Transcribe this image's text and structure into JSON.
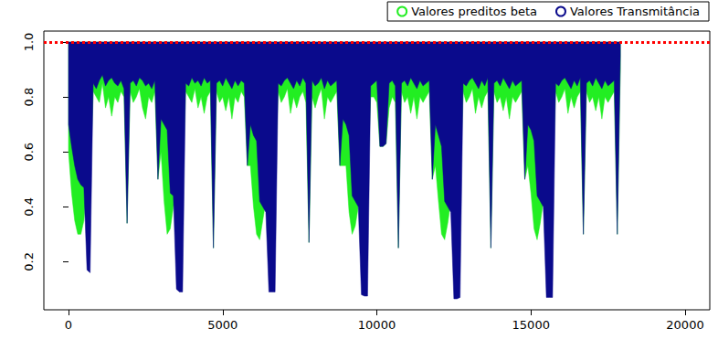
{
  "chart_data": {
    "type": "area",
    "x": [
      0,
      100,
      200,
      300,
      400,
      500,
      600,
      700,
      800,
      900,
      1000,
      1100,
      1200,
      1300,
      1400,
      1500,
      1600,
      1700,
      1800,
      1900,
      2000,
      2100,
      2200,
      2300,
      2400,
      2500,
      2600,
      2700,
      2800,
      2900,
      3000,
      3100,
      3200,
      3300,
      3400,
      3500,
      3600,
      3700,
      3800,
      3900,
      4000,
      4100,
      4200,
      4300,
      4400,
      4500,
      4600,
      4700,
      4800,
      4900,
      5000,
      5100,
      5200,
      5300,
      5400,
      5500,
      5600,
      5700,
      5800,
      5900,
      6000,
      6100,
      6200,
      6300,
      6400,
      6500,
      6600,
      6700,
      6800,
      6900,
      7000,
      7100,
      7200,
      7300,
      7400,
      7500,
      7600,
      7700,
      7800,
      7900,
      8000,
      8100,
      8200,
      8300,
      8400,
      8500,
      8600,
      8700,
      8800,
      8900,
      9000,
      9100,
      9200,
      9300,
      9400,
      9500,
      9600,
      9700,
      9800,
      9900,
      10000,
      10100,
      10200,
      10300,
      10400,
      10500,
      10600,
      10700,
      10800,
      10900,
      11000,
      11100,
      11200,
      11300,
      11400,
      11500,
      11600,
      11700,
      11800,
      11900,
      12000,
      12100,
      12200,
      12300,
      12400,
      12500,
      12600,
      12700,
      12800,
      12900,
      13000,
      13100,
      13200,
      13300,
      13400,
      13500,
      13600,
      13700,
      13800,
      13900,
      14000,
      14100,
      14200,
      14300,
      14400,
      14500,
      14600,
      14700,
      14800,
      14900,
      15000,
      15100,
      15200,
      15300,
      15400,
      15500,
      15600,
      15700,
      15800,
      15900,
      16000,
      16100,
      16200,
      16300,
      16400,
      16500,
      16600,
      16700,
      16800,
      16900,
      17000,
      17100,
      17200,
      17300,
      17400,
      17500,
      17600,
      17700,
      17800,
      17900
    ],
    "series": [
      {
        "name": "Valores preditos beta",
        "color": "#22ee22",
        "values": [
          0.6,
          0.45,
          0.35,
          0.3,
          0.3,
          0.35,
          0.5,
          0.5,
          0.82,
          0.8,
          0.78,
          0.85,
          0.76,
          0.8,
          0.73,
          0.8,
          0.78,
          0.82,
          0.8,
          0.34,
          0.82,
          0.78,
          0.8,
          0.83,
          0.76,
          0.72,
          0.8,
          0.78,
          0.82,
          0.5,
          0.6,
          0.42,
          0.3,
          0.32,
          0.4,
          0.45,
          0.45,
          0.5,
          0.82,
          0.8,
          0.78,
          0.83,
          0.76,
          0.8,
          0.74,
          0.8,
          0.82,
          0.25,
          0.82,
          0.78,
          0.8,
          0.75,
          0.8,
          0.72,
          0.8,
          0.78,
          0.82,
          0.8,
          0.55,
          0.55,
          0.4,
          0.3,
          0.28,
          0.35,
          0.42,
          0.45,
          0.45,
          0.5,
          0.82,
          0.78,
          0.8,
          0.83,
          0.74,
          0.8,
          0.76,
          0.8,
          0.82,
          0.78,
          0.27,
          0.8,
          0.76,
          0.8,
          0.83,
          0.72,
          0.8,
          0.78,
          0.8,
          0.82,
          0.55,
          0.55,
          0.55,
          0.38,
          0.3,
          0.33,
          0.4,
          0.45,
          0.45,
          0.5,
          0.8,
          0.8,
          0.78,
          0.62,
          0.62,
          0.63,
          0.76,
          0.8,
          0.78,
          0.25,
          0.82,
          0.78,
          0.8,
          0.74,
          0.8,
          0.72,
          0.8,
          0.78,
          0.8,
          0.82,
          0.5,
          0.55,
          0.42,
          0.3,
          0.28,
          0.34,
          0.42,
          0.45,
          0.45,
          0.5,
          0.82,
          0.78,
          0.8,
          0.83,
          0.74,
          0.8,
          0.76,
          0.8,
          0.82,
          0.25,
          0.82,
          0.78,
          0.8,
          0.75,
          0.8,
          0.72,
          0.8,
          0.78,
          0.8,
          0.82,
          0.5,
          0.55,
          0.45,
          0.32,
          0.28,
          0.34,
          0.42,
          0.45,
          0.45,
          0.5,
          0.82,
          0.78,
          0.8,
          0.83,
          0.74,
          0.8,
          0.76,
          0.8,
          0.82,
          0.3,
          0.82,
          0.78,
          0.8,
          0.75,
          0.8,
          0.72,
          0.8,
          0.78,
          0.8,
          0.82,
          0.3,
          0.9
        ]
      },
      {
        "name": "Valores Transmitância",
        "color": "#0a0a8c",
        "values": [
          0.7,
          0.62,
          0.55,
          0.5,
          0.48,
          0.47,
          0.17,
          0.16,
          0.85,
          0.83,
          0.86,
          0.88,
          0.84,
          0.86,
          0.87,
          0.85,
          0.84,
          0.86,
          0.83,
          0.34,
          0.85,
          0.86,
          0.84,
          0.87,
          0.86,
          0.84,
          0.85,
          0.83,
          0.86,
          0.5,
          0.72,
          0.7,
          0.68,
          0.45,
          0.44,
          0.1,
          0.09,
          0.09,
          0.85,
          0.84,
          0.87,
          0.85,
          0.86,
          0.84,
          0.87,
          0.85,
          0.86,
          0.25,
          0.85,
          0.86,
          0.84,
          0.87,
          0.85,
          0.83,
          0.86,
          0.84,
          0.86,
          0.85,
          0.55,
          0.7,
          0.66,
          0.64,
          0.42,
          0.4,
          0.38,
          0.09,
          0.09,
          0.09,
          0.85,
          0.84,
          0.86,
          0.87,
          0.85,
          0.83,
          0.86,
          0.84,
          0.87,
          0.85,
          0.27,
          0.86,
          0.84,
          0.85,
          0.87,
          0.83,
          0.86,
          0.84,
          0.85,
          0.86,
          0.55,
          0.72,
          0.7,
          0.66,
          0.44,
          0.42,
          0.4,
          0.08,
          0.075,
          0.075,
          0.84,
          0.85,
          0.86,
          0.62,
          0.62,
          0.63,
          0.85,
          0.86,
          0.84,
          0.25,
          0.85,
          0.86,
          0.84,
          0.87,
          0.85,
          0.83,
          0.86,
          0.84,
          0.85,
          0.86,
          0.5,
          0.7,
          0.66,
          0.62,
          0.42,
          0.4,
          0.38,
          0.065,
          0.065,
          0.07,
          0.85,
          0.84,
          0.86,
          0.87,
          0.85,
          0.83,
          0.86,
          0.84,
          0.87,
          0.25,
          0.85,
          0.86,
          0.84,
          0.87,
          0.85,
          0.83,
          0.86,
          0.84,
          0.85,
          0.86,
          0.5,
          0.7,
          0.68,
          0.64,
          0.44,
          0.42,
          0.4,
          0.07,
          0.07,
          0.07,
          0.85,
          0.84,
          0.86,
          0.87,
          0.85,
          0.83,
          0.86,
          0.84,
          0.87,
          0.3,
          0.85,
          0.86,
          0.84,
          0.87,
          0.85,
          0.83,
          0.86,
          0.84,
          0.85,
          0.86,
          0.3,
          0.95
        ]
      }
    ],
    "xlim": [
      -800,
      20800
    ],
    "xticks": [
      0,
      5000,
      10000,
      15000,
      20000
    ],
    "ylim": [
      0.025,
      1.04
    ],
    "yticks": [
      0.2,
      0.4,
      0.6,
      0.8,
      {
        "value": 1,
        "label": "1.0"
      }
    ],
    "grid": false,
    "legend": "top-right",
    "hline": {
      "y": 1,
      "color": "#ff0000",
      "line_style": "dotted"
    }
  }
}
